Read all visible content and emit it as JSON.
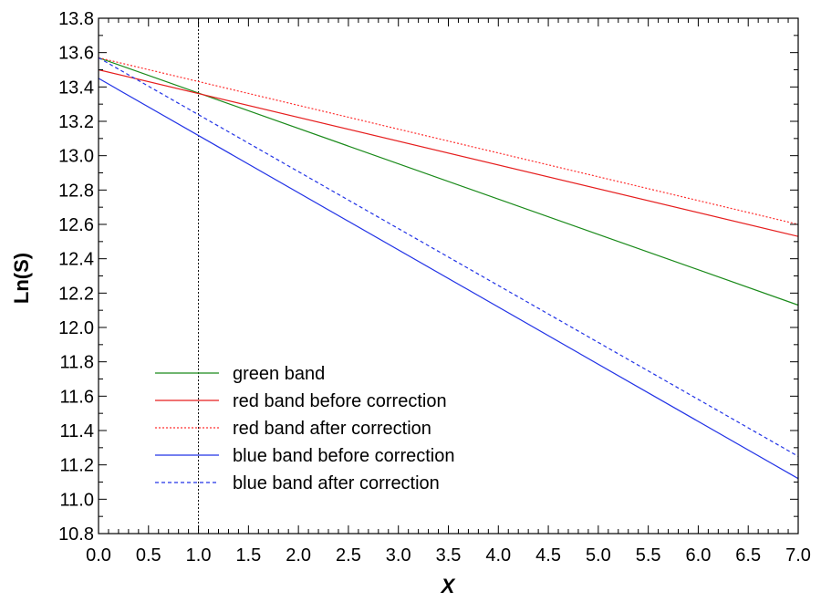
{
  "chart_data": {
    "type": "line",
    "title": "",
    "xlabel": "X",
    "ylabel": "Ln(S)",
    "xlim": [
      0.0,
      7.0
    ],
    "ylim": [
      10.8,
      13.8
    ],
    "xticks": [
      "0.0",
      "0.5",
      "1.0",
      "1.5",
      "2.0",
      "2.5",
      "3.0",
      "3.5",
      "4.0",
      "4.5",
      "5.0",
      "5.5",
      "6.0",
      "6.5",
      "7.0"
    ],
    "yticks": [
      "10.8",
      "11.0",
      "11.2",
      "11.4",
      "11.6",
      "11.8",
      "12.0",
      "12.2",
      "12.4",
      "12.6",
      "12.8",
      "13.0",
      "13.2",
      "13.4",
      "13.6",
      "13.8"
    ],
    "grid": false,
    "legend_position": "lower-left",
    "reference_line": {
      "x": 1.0,
      "style": "dotted",
      "color": "#000000"
    },
    "series": [
      {
        "name": "green band",
        "color": "#1a8a1a",
        "dash": "solid",
        "x": [
          0.0,
          7.0
        ],
        "y": [
          13.57,
          12.13
        ]
      },
      {
        "name": "red band before correction",
        "color": "#e61e1e",
        "dash": "solid",
        "x": [
          0.0,
          7.0
        ],
        "y": [
          13.5,
          12.53
        ]
      },
      {
        "name": "red band after correction",
        "color": "#ff3030",
        "dash": "dotted",
        "x": [
          0.0,
          7.0
        ],
        "y": [
          13.57,
          12.6
        ]
      },
      {
        "name": "blue band before correction",
        "color": "#2233e6",
        "dash": "solid",
        "x": [
          0.0,
          7.0
        ],
        "y": [
          13.45,
          11.12
        ]
      },
      {
        "name": "blue band after correction",
        "color": "#2233e6",
        "dash": "dashed",
        "x": [
          0.0,
          7.0
        ],
        "y": [
          13.57,
          11.25
        ]
      }
    ]
  }
}
